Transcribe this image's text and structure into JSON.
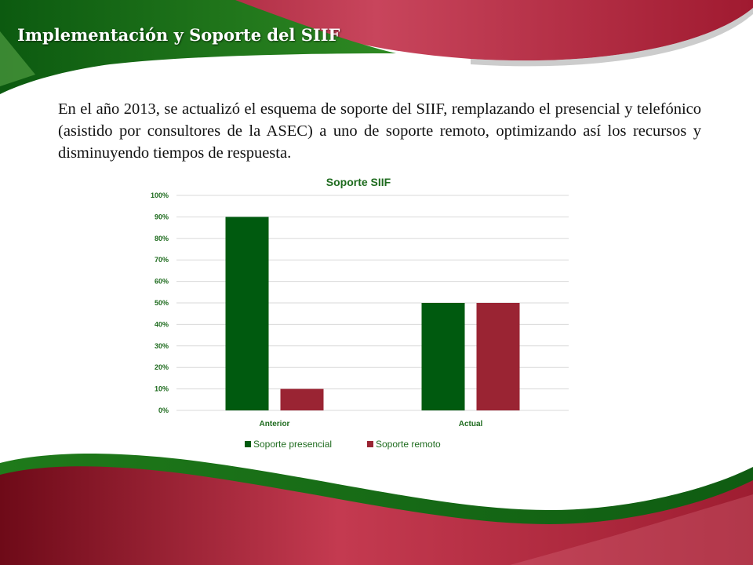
{
  "slide": {
    "title": "Implementación y Soporte del SIIF",
    "body": "En el año 2013, se actualizó el esquema de soporte del SIIF, remplazando el presencial y telefónico (asistido por consultores de la ASEC) a uno de soporte remoto, optimizando así los recursos y disminuyendo tiempos de respuesta."
  },
  "colors": {
    "green": "#005a0f",
    "red": "#9a2433",
    "axis_text": "#1e6b1e"
  },
  "chart_data": {
    "type": "bar",
    "title": "Soporte SIIF",
    "categories": [
      "Anterior",
      "Actual"
    ],
    "series": [
      {
        "name": "Soporte presencial",
        "values": [
          90,
          50
        ],
        "color": "#005a0f"
      },
      {
        "name": "Soporte remoto",
        "values": [
          10,
          50
        ],
        "color": "#9a2433"
      }
    ],
    "ylim": [
      0,
      100
    ],
    "yticks": [
      0,
      10,
      20,
      30,
      40,
      50,
      60,
      70,
      80,
      90,
      100
    ],
    "ytick_labels": [
      "0%",
      "10%",
      "20%",
      "30%",
      "40%",
      "50%",
      "60%",
      "70%",
      "80%",
      "90%",
      "100%"
    ],
    "grid": true,
    "legend": "bottom"
  }
}
